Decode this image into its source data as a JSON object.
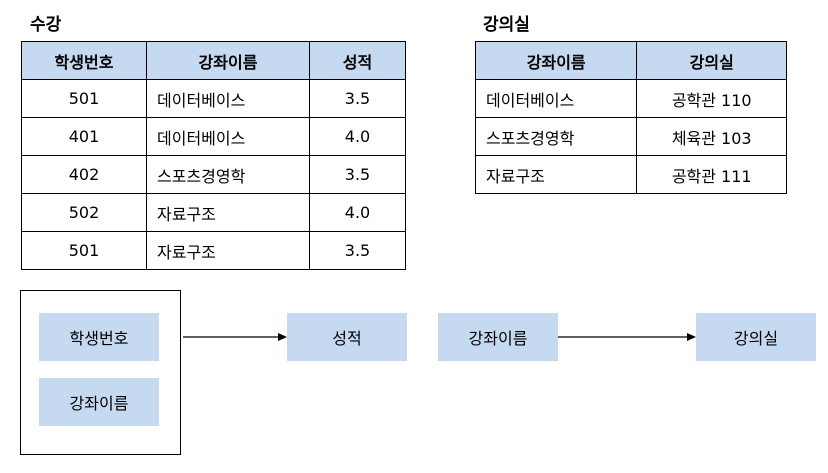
{
  "enrollment": {
    "title": "수강",
    "headers": [
      "학생번호",
      "강좌이름",
      "성적"
    ],
    "rows": [
      [
        "501",
        "데이터베이스",
        "3.5"
      ],
      [
        "401",
        "데이터베이스",
        "4.0"
      ],
      [
        "402",
        "스포츠경영학",
        "3.5"
      ],
      [
        "502",
        "자료구조",
        "4.0"
      ],
      [
        "501",
        "자료구조",
        "3.5"
      ]
    ]
  },
  "classroom": {
    "title": "강의실",
    "headers": [
      "강좌이름",
      "강의실"
    ],
    "rows": [
      [
        "데이터베이스",
        "공학관 110"
      ],
      [
        "스포츠경영학",
        "체육관 103"
      ],
      [
        "자료구조",
        "공학관 111"
      ]
    ]
  },
  "dependencies": {
    "fd1": {
      "determinants": [
        "학생번호",
        "강좌이름"
      ],
      "dependent": "성적"
    },
    "fd2": {
      "determinant": "강좌이름",
      "dependent": "강의실"
    }
  },
  "colors": {
    "header_fill": "#c5d9f1",
    "box_fill": "#c5d9f1"
  }
}
